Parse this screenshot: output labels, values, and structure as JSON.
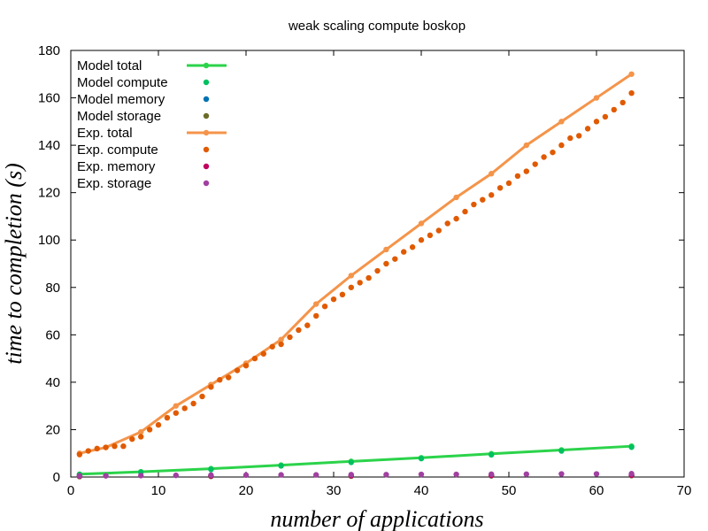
{
  "chart_data": {
    "type": "scatter",
    "title": "weak scaling compute boskop",
    "xlabel": "number of applications",
    "ylabel": "time to completion (s)",
    "xlim": [
      0,
      70
    ],
    "ylim": [
      0,
      180
    ],
    "xticks": [
      0,
      10,
      20,
      30,
      40,
      50,
      60,
      70
    ],
    "yticks": [
      0,
      20,
      40,
      60,
      80,
      100,
      120,
      140,
      160,
      180
    ],
    "grid": false,
    "legend_position": "top-left",
    "series": [
      {
        "name": "Model total",
        "style": "line+points",
        "color": "#2bd34a",
        "x": [
          1,
          8,
          16,
          24,
          32,
          40,
          48,
          56,
          64
        ],
        "y": [
          1.2,
          2.2,
          3.5,
          5.0,
          6.6,
          8.1,
          9.8,
          11.4,
          13.0
        ]
      },
      {
        "name": "Model compute",
        "style": "points",
        "color": "#00c060",
        "x": [
          1,
          8,
          16,
          24,
          32,
          40,
          48,
          56,
          64
        ],
        "y": [
          1.0,
          2.0,
          3.2,
          4.7,
          6.2,
          7.8,
          9.4,
          11.0,
          12.6
        ]
      },
      {
        "name": "Model memory",
        "style": "points",
        "color": "#0072b2",
        "x": [
          1,
          16,
          32,
          48,
          64
        ],
        "y": [
          0.3,
          0.4,
          0.5,
          0.6,
          0.7
        ]
      },
      {
        "name": "Model storage",
        "style": "points",
        "color": "#6b6b2a",
        "x": [
          1,
          16,
          32,
          48,
          64
        ],
        "y": [
          0.2,
          0.3,
          0.4,
          0.5,
          0.6
        ]
      },
      {
        "name": "Exp. total",
        "style": "line+points",
        "color": "#f4944a",
        "x": [
          1,
          4,
          8,
          12,
          16,
          20,
          24,
          28,
          32,
          36,
          40,
          44,
          48,
          52,
          56,
          60,
          64
        ],
        "y": [
          10,
          12.5,
          19,
          30,
          39,
          48,
          58,
          73,
          85,
          96,
          107,
          118,
          128,
          140,
          150,
          160,
          170
        ]
      },
      {
        "name": "Exp. compute",
        "style": "points",
        "color": "#e05a00",
        "x": [
          1,
          2,
          3,
          4,
          5,
          6,
          7,
          8,
          9,
          10,
          11,
          12,
          13,
          14,
          15,
          16,
          17,
          18,
          19,
          20,
          21,
          22,
          23,
          24,
          25,
          26,
          27,
          28,
          29,
          30,
          31,
          32,
          33,
          34,
          35,
          36,
          37,
          38,
          39,
          40,
          41,
          42,
          43,
          44,
          45,
          46,
          47,
          48,
          49,
          50,
          51,
          52,
          53,
          54,
          55,
          56,
          57,
          58,
          59,
          60,
          61,
          62,
          63,
          64
        ],
        "y": [
          9.5,
          11,
          12,
          12.5,
          13,
          13,
          16,
          17,
          20,
          22,
          25,
          27,
          29,
          31,
          34,
          38,
          41,
          42,
          45,
          47,
          50,
          52,
          55,
          56,
          59,
          62,
          64,
          68,
          72,
          75,
          77,
          80,
          82,
          84,
          87,
          90,
          92,
          95,
          97,
          100,
          102,
          104,
          107,
          109,
          112,
          115,
          117,
          119,
          122,
          124,
          127,
          129,
          132,
          135,
          137,
          140,
          143,
          144,
          147,
          150,
          152,
          155,
          158,
          162
        ]
      },
      {
        "name": "Exp. memory",
        "style": "points",
        "color": "#c00060",
        "x": [
          1,
          16,
          32,
          48,
          64
        ],
        "y": [
          0.4,
          0.5,
          0.6,
          0.7,
          0.8
        ]
      },
      {
        "name": "Exp. storage",
        "style": "points",
        "color": "#a040a0",
        "x": [
          1,
          4,
          8,
          12,
          16,
          20,
          24,
          28,
          32,
          36,
          40,
          44,
          48,
          52,
          56,
          60,
          64
        ],
        "y": [
          0.5,
          0.5,
          0.6,
          0.7,
          0.8,
          0.8,
          0.9,
          0.9,
          1.0,
          1.0,
          1.1,
          1.1,
          1.2,
          1.2,
          1.3,
          1.3,
          1.4
        ]
      }
    ]
  }
}
